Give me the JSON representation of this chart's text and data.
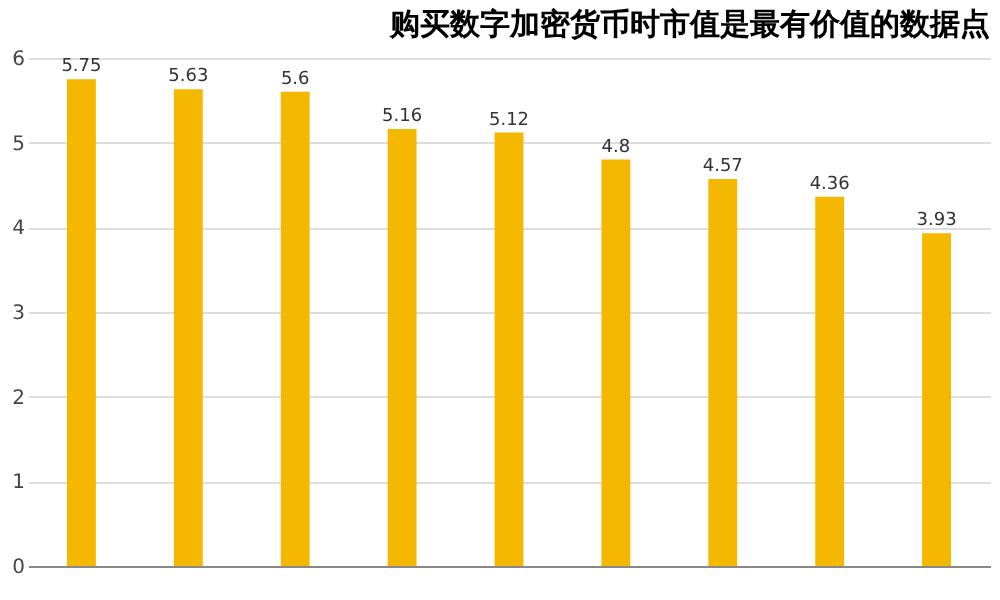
{
  "chart_data": {
    "type": "bar",
    "title": "购买数字加密货币时市值是最有价值的数据点",
    "categories": [
      null,
      null,
      null,
      null,
      null,
      null,
      null,
      null,
      null
    ],
    "values": [
      5.75,
      5.63,
      5.6,
      5.16,
      5.12,
      4.8,
      4.57,
      4.36,
      3.93
    ],
    "color": "#f5b800",
    "ylim": [
      0,
      6
    ],
    "yticks": [
      0,
      1,
      2,
      3,
      4,
      5,
      6
    ],
    "grid": "y",
    "data_labels": true
  }
}
